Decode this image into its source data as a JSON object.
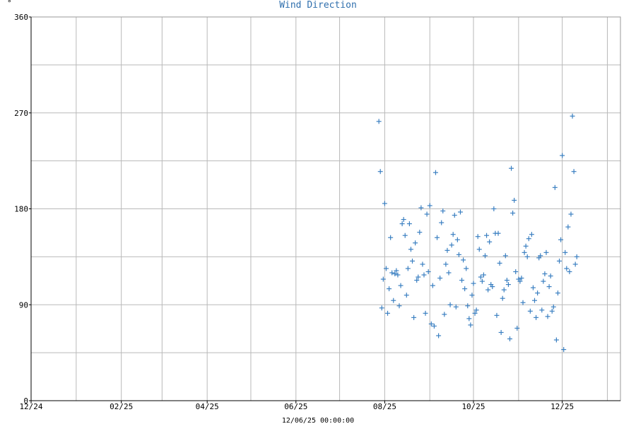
{
  "chart_data": {
    "type": "scatter",
    "title": "Wind Direction",
    "unit": "°",
    "footer": "12/06/25 00:00:00",
    "ylim": [
      0,
      360
    ],
    "y_ticks": [
      0,
      90,
      180,
      270,
      360
    ],
    "x_tick_labels": [
      "12/24",
      "02/25",
      "04/25",
      "06/25",
      "08/25",
      "10/25",
      "12/25"
    ],
    "grid": true,
    "marker_color": "#3a7fc1",
    "series": [
      {
        "marker": "+",
        "points": [
          [
            "2025-07-28",
            262
          ],
          [
            "2025-07-29",
            215
          ],
          [
            "2025-07-30",
            87
          ],
          [
            "2025-07-31",
            114
          ],
          [
            "2025-08-01",
            185
          ],
          [
            "2025-08-02",
            124
          ],
          [
            "2025-08-03",
            82
          ],
          [
            "2025-08-04",
            105
          ],
          [
            "2025-08-05",
            153
          ],
          [
            "2025-08-06",
            120
          ],
          [
            "2025-08-07",
            94
          ],
          [
            "2025-08-08",
            119
          ],
          [
            "2025-08-09",
            122
          ],
          [
            "2025-08-10",
            118
          ],
          [
            "2025-08-11",
            89
          ],
          [
            "2025-08-12",
            108
          ],
          [
            "2025-08-13",
            166
          ],
          [
            "2025-08-14",
            170
          ],
          [
            "2025-08-15",
            155
          ],
          [
            "2025-08-16",
            99
          ],
          [
            "2025-08-17",
            124
          ],
          [
            "2025-08-18",
            166
          ],
          [
            "2025-08-19",
            142
          ],
          [
            "2025-08-20",
            131
          ],
          [
            "2025-08-21",
            78
          ],
          [
            "2025-08-22",
            148
          ],
          [
            "2025-08-23",
            113
          ],
          [
            "2025-08-24",
            116
          ],
          [
            "2025-08-25",
            158
          ],
          [
            "2025-08-26",
            181
          ],
          [
            "2025-08-27",
            128
          ],
          [
            "2025-08-28",
            118
          ],
          [
            "2025-08-29",
            82
          ],
          [
            "2025-08-30",
            175
          ],
          [
            "2025-08-31",
            121
          ],
          [
            "2025-09-01",
            183
          ],
          [
            "2025-09-02",
            72
          ],
          [
            "2025-09-03",
            108
          ],
          [
            "2025-09-04",
            70
          ],
          [
            "2025-09-05",
            214
          ],
          [
            "2025-09-06",
            153
          ],
          [
            "2025-09-07",
            61
          ],
          [
            "2025-09-08",
            115
          ],
          [
            "2025-09-09",
            167
          ],
          [
            "2025-09-10",
            178
          ],
          [
            "2025-09-11",
            81
          ],
          [
            "2025-09-12",
            128
          ],
          [
            "2025-09-13",
            141
          ],
          [
            "2025-09-14",
            120
          ],
          [
            "2025-09-15",
            90
          ],
          [
            "2025-09-16",
            146
          ],
          [
            "2025-09-17",
            156
          ],
          [
            "2025-09-18",
            174
          ],
          [
            "2025-09-19",
            88
          ],
          [
            "2025-09-20",
            151
          ],
          [
            "2025-09-21",
            137
          ],
          [
            "2025-09-22",
            177
          ],
          [
            "2025-09-23",
            113
          ],
          [
            "2025-09-24",
            132
          ],
          [
            "2025-09-25",
            105
          ],
          [
            "2025-09-26",
            124
          ],
          [
            "2025-09-27",
            89
          ],
          [
            "2025-09-28",
            77
          ],
          [
            "2025-09-29",
            71
          ],
          [
            "2025-09-30",
            99
          ],
          [
            "2025-10-01",
            110
          ],
          [
            "2025-10-02",
            82
          ],
          [
            "2025-10-03",
            85
          ],
          [
            "2025-10-04",
            154
          ],
          [
            "2025-10-05",
            142
          ],
          [
            "2025-10-06",
            116
          ],
          [
            "2025-10-07",
            112
          ],
          [
            "2025-10-08",
            118
          ],
          [
            "2025-10-09",
            136
          ],
          [
            "2025-10-10",
            155
          ],
          [
            "2025-10-11",
            104
          ],
          [
            "2025-10-12",
            149
          ],
          [
            "2025-10-13",
            109
          ],
          [
            "2025-10-14",
            107
          ],
          [
            "2025-10-15",
            180
          ],
          [
            "2025-10-16",
            157
          ],
          [
            "2025-10-17",
            80
          ],
          [
            "2025-10-18",
            157
          ],
          [
            "2025-10-19",
            129
          ],
          [
            "2025-10-20",
            64
          ],
          [
            "2025-10-21",
            96
          ],
          [
            "2025-10-22",
            104
          ],
          [
            "2025-10-23",
            136
          ],
          [
            "2025-10-24",
            113
          ],
          [
            "2025-10-25",
            109
          ],
          [
            "2025-10-26",
            58
          ],
          [
            "2025-10-27",
            218
          ],
          [
            "2025-10-28",
            176
          ],
          [
            "2025-10-29",
            188
          ],
          [
            "2025-10-30",
            121
          ],
          [
            "2025-10-31",
            68
          ],
          [
            "2025-11-01",
            114
          ],
          [
            "2025-11-02",
            112
          ],
          [
            "2025-11-03",
            115
          ],
          [
            "2025-11-04",
            92
          ],
          [
            "2025-11-05",
            139
          ],
          [
            "2025-11-06",
            145
          ],
          [
            "2025-11-07",
            135
          ],
          [
            "2025-11-08",
            152
          ],
          [
            "2025-11-09",
            84
          ],
          [
            "2025-11-10",
            156
          ],
          [
            "2025-11-11",
            106
          ],
          [
            "2025-11-12",
            94
          ],
          [
            "2025-11-13",
            78
          ],
          [
            "2025-11-14",
            101
          ],
          [
            "2025-11-15",
            134
          ],
          [
            "2025-11-16",
            136
          ],
          [
            "2025-11-17",
            85
          ],
          [
            "2025-11-18",
            112
          ],
          [
            "2025-11-19",
            119
          ],
          [
            "2025-11-20",
            139
          ],
          [
            "2025-11-21",
            79
          ],
          [
            "2025-11-22",
            107
          ],
          [
            "2025-11-23",
            117
          ],
          [
            "2025-11-24",
            84
          ],
          [
            "2025-11-25",
            88
          ],
          [
            "2025-11-26",
            200
          ],
          [
            "2025-11-27",
            57
          ],
          [
            "2025-11-28",
            101
          ],
          [
            "2025-11-29",
            131
          ],
          [
            "2025-11-30",
            151
          ],
          [
            "2025-12-01",
            230
          ],
          [
            "2025-12-02",
            48
          ],
          [
            "2025-12-03",
            139
          ],
          [
            "2025-12-04",
            124
          ],
          [
            "2025-12-05",
            163
          ],
          [
            "2025-12-06",
            121
          ],
          [
            "2025-12-07",
            175
          ],
          [
            "2025-12-08",
            267
          ],
          [
            "2025-12-09",
            215
          ],
          [
            "2025-12-10",
            128
          ],
          [
            "2025-12-11",
            135
          ]
        ]
      }
    ]
  }
}
